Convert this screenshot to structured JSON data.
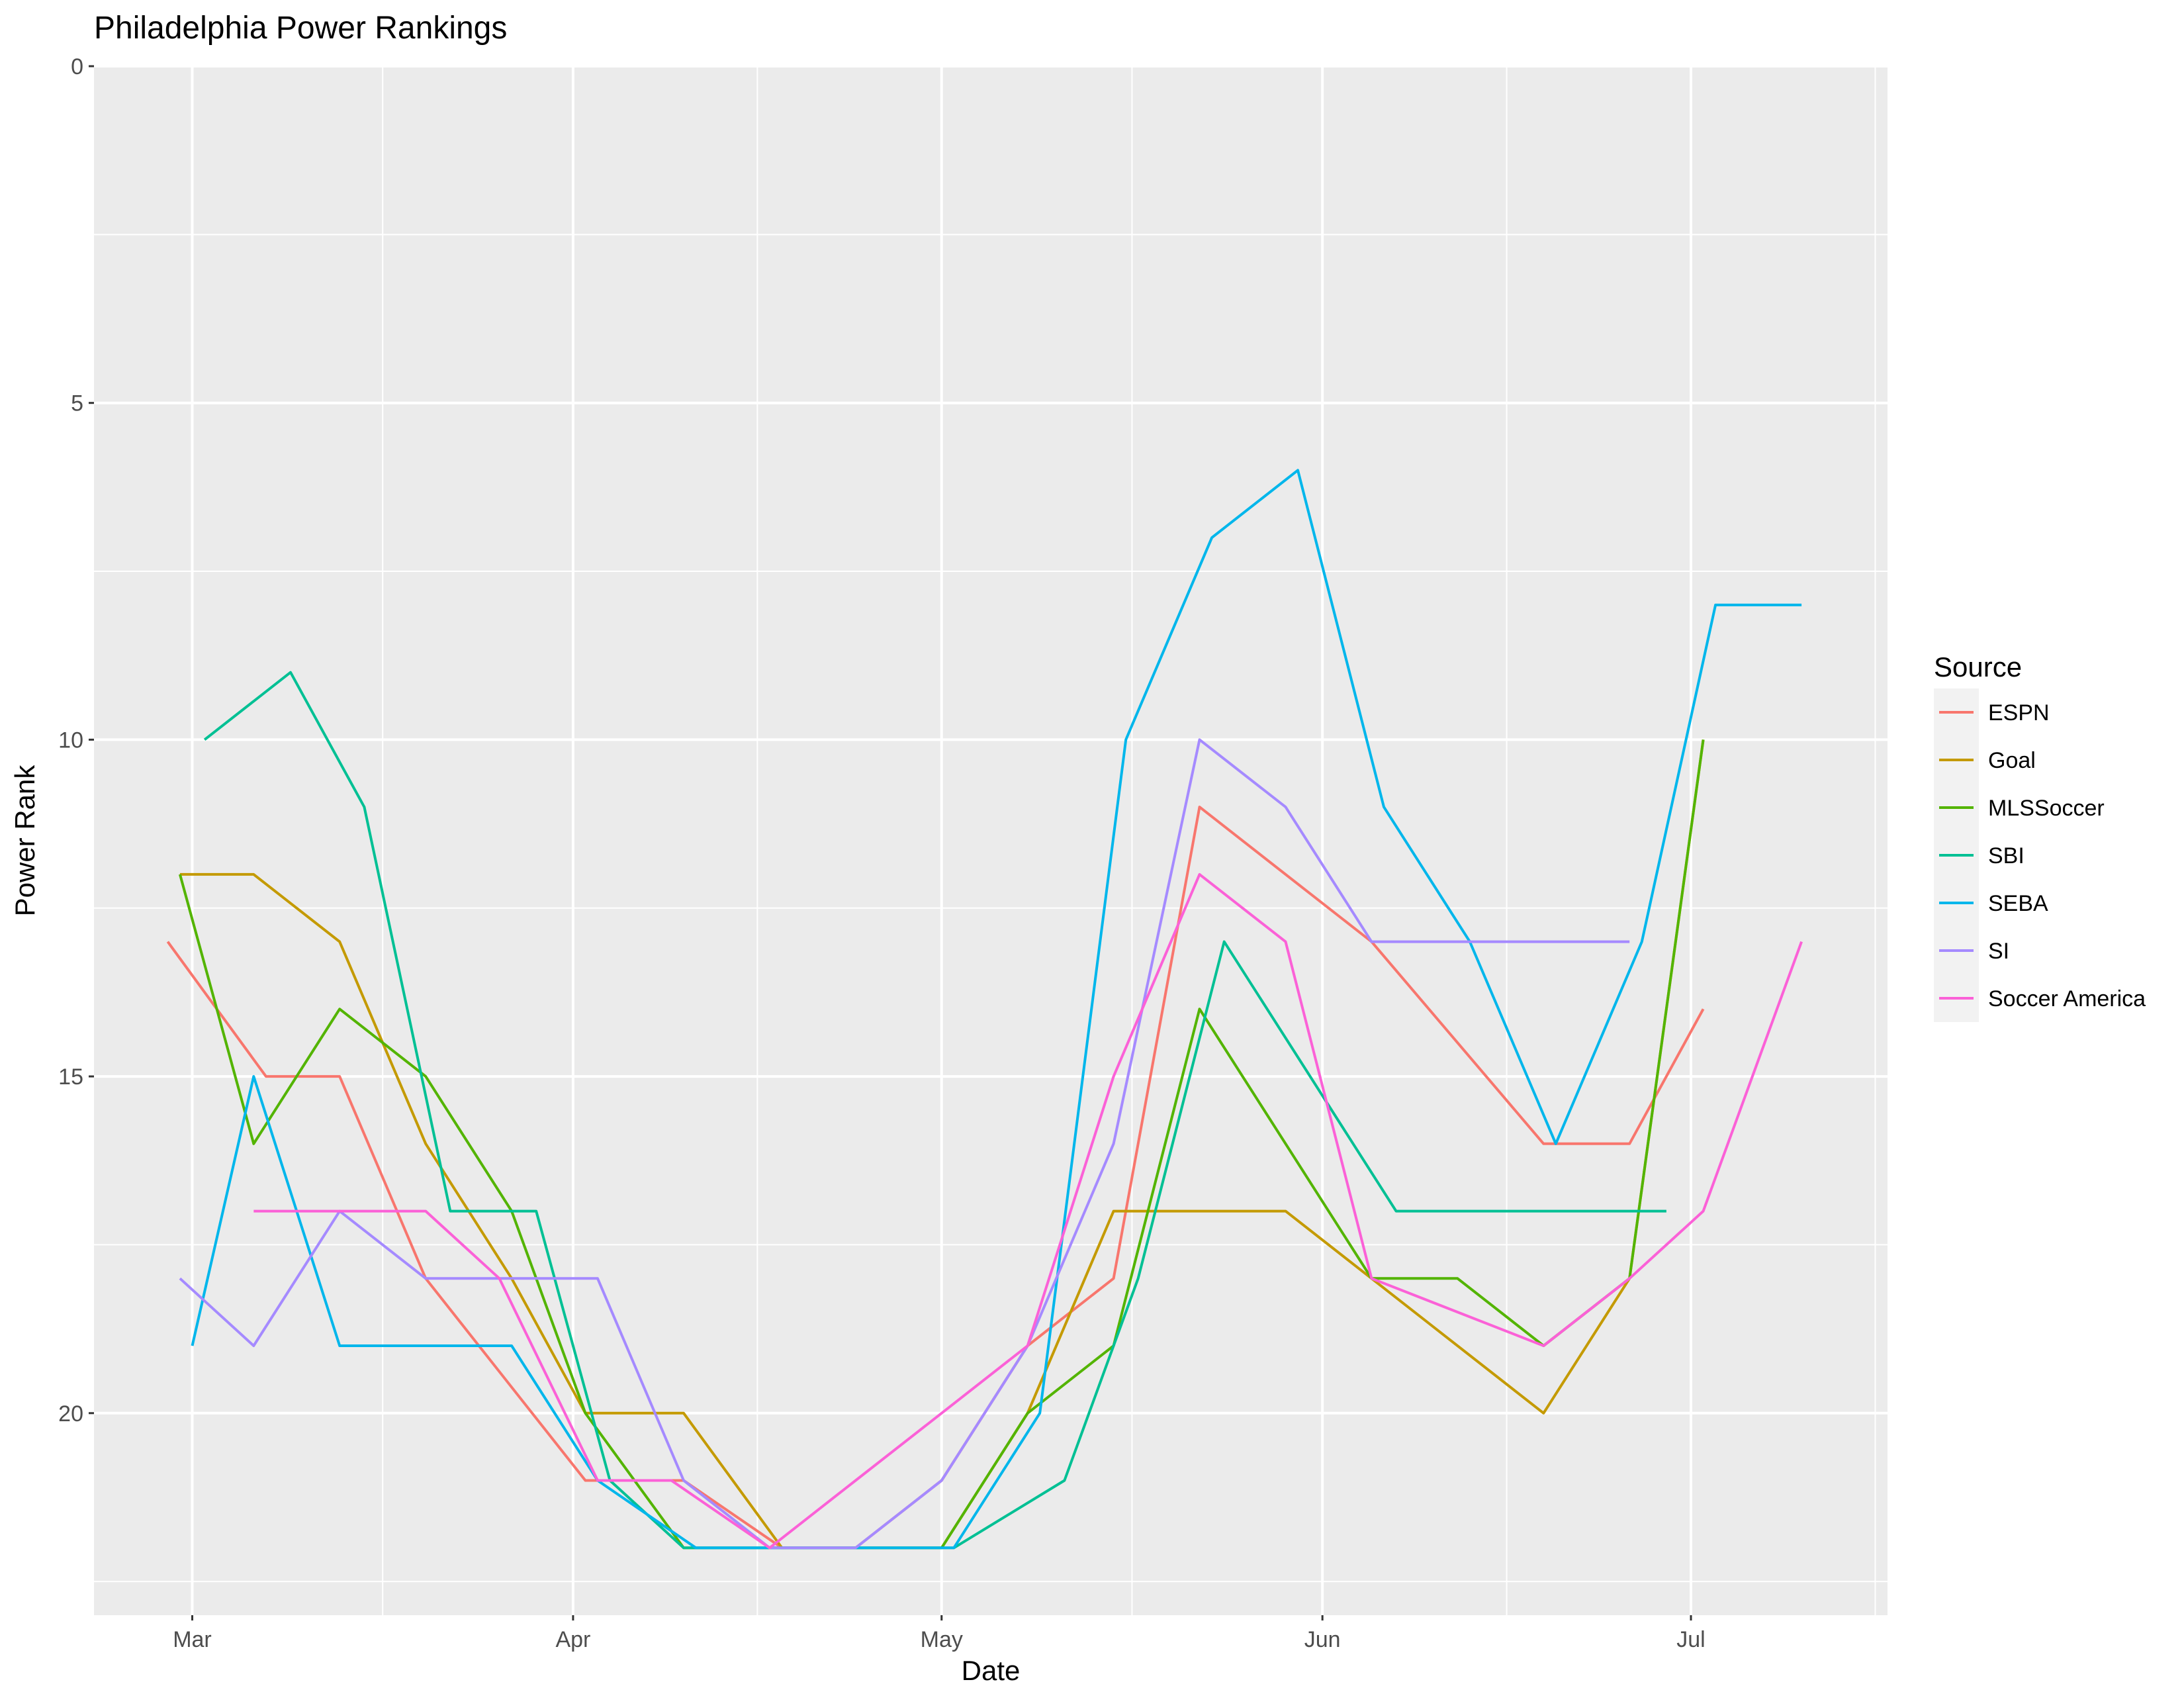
{
  "chart_data": {
    "type": "line",
    "title": "Philadelphia Power Rankings",
    "xlabel": "Date",
    "ylabel": "Power Rank",
    "y_reversed": true,
    "ylim": [
      0,
      23
    ],
    "yticks": [
      0,
      5,
      10,
      15,
      20
    ],
    "xlim": [
      "2016-02-22",
      "2016-07-17"
    ],
    "xticks": [
      {
        "date": "2016-03-01",
        "label": "Mar"
      },
      {
        "date": "2016-04-01",
        "label": "Apr"
      },
      {
        "date": "2016-05-01",
        "label": "May"
      },
      {
        "date": "2016-06-01",
        "label": "Jun"
      },
      {
        "date": "2016-07-01",
        "label": "Jul"
      }
    ],
    "grid": true,
    "legend": {
      "title": "Source",
      "position": "right"
    },
    "series": [
      {
        "name": "ESPN",
        "color": "#F8766D",
        "points": [
          [
            "2016-02-28",
            13
          ],
          [
            "2016-03-07",
            15
          ],
          [
            "2016-03-13",
            15
          ],
          [
            "2016-03-20",
            18
          ],
          [
            "2016-04-02",
            21
          ],
          [
            "2016-04-10",
            21
          ],
          [
            "2016-04-18",
            22
          ],
          [
            "2016-04-24",
            22
          ],
          [
            "2016-05-01",
            21
          ],
          [
            "2016-05-08",
            19
          ],
          [
            "2016-05-15",
            18
          ],
          [
            "2016-05-22",
            11
          ],
          [
            "2016-06-05",
            13
          ],
          [
            "2016-06-19",
            16
          ],
          [
            "2016-06-26",
            16
          ],
          [
            "2016-07-02",
            14
          ]
        ]
      },
      {
        "name": "Goal",
        "color": "#C49A00",
        "points": [
          [
            "2016-02-29",
            12
          ],
          [
            "2016-03-06",
            12
          ],
          [
            "2016-03-13",
            13
          ],
          [
            "2016-03-20",
            16
          ],
          [
            "2016-03-27",
            18
          ],
          [
            "2016-04-02",
            20
          ],
          [
            "2016-04-10",
            20
          ],
          [
            "2016-04-18",
            22
          ],
          [
            "2016-04-24",
            22
          ],
          [
            "2016-05-01",
            22
          ],
          [
            "2016-05-08",
            20
          ],
          [
            "2016-05-15",
            17
          ],
          [
            "2016-05-22",
            17
          ],
          [
            "2016-05-29",
            17
          ],
          [
            "2016-06-05",
            18
          ],
          [
            "2016-06-19",
            20
          ],
          [
            "2016-06-26",
            18
          ],
          [
            "2016-07-02",
            10
          ]
        ]
      },
      {
        "name": "MLSSoccer",
        "color": "#53B400",
        "points": [
          [
            "2016-02-29",
            12
          ],
          [
            "2016-03-06",
            16
          ],
          [
            "2016-03-13",
            14
          ],
          [
            "2016-03-20",
            15
          ],
          [
            "2016-03-27",
            17
          ],
          [
            "2016-04-02",
            20
          ],
          [
            "2016-04-10",
            22
          ],
          [
            "2016-04-18",
            22
          ],
          [
            "2016-04-24",
            22
          ],
          [
            "2016-05-01",
            22
          ],
          [
            "2016-05-08",
            20
          ],
          [
            "2016-05-15",
            19
          ],
          [
            "2016-05-22",
            14
          ],
          [
            "2016-05-29",
            16
          ],
          [
            "2016-06-05",
            18
          ],
          [
            "2016-06-12",
            18
          ],
          [
            "2016-06-19",
            19
          ],
          [
            "2016-06-26",
            18
          ],
          [
            "2016-07-02",
            10
          ]
        ]
      },
      {
        "name": "SBI",
        "color": "#00C094",
        "points": [
          [
            "2016-03-02",
            10
          ],
          [
            "2016-03-09",
            9
          ],
          [
            "2016-03-15",
            11
          ],
          [
            "2016-03-22",
            17
          ],
          [
            "2016-03-29",
            17
          ],
          [
            "2016-04-04",
            21
          ],
          [
            "2016-04-10",
            22
          ],
          [
            "2016-04-18",
            22
          ],
          [
            "2016-04-24",
            22
          ],
          [
            "2016-05-02",
            22
          ],
          [
            "2016-05-11",
            21
          ],
          [
            "2016-05-17",
            18
          ],
          [
            "2016-05-24",
            13
          ],
          [
            "2016-05-31",
            15
          ],
          [
            "2016-06-07",
            17
          ],
          [
            "2016-06-14",
            17
          ],
          [
            "2016-06-21",
            17
          ],
          [
            "2016-06-29",
            17
          ]
        ]
      },
      {
        "name": "SEBA",
        "color": "#00B6EB",
        "points": [
          [
            "2016-03-01",
            19
          ],
          [
            "2016-03-06",
            15
          ],
          [
            "2016-03-13",
            19
          ],
          [
            "2016-03-20",
            19
          ],
          [
            "2016-03-27",
            19
          ],
          [
            "2016-04-03",
            21
          ],
          [
            "2016-04-11",
            22
          ],
          [
            "2016-04-18",
            22
          ],
          [
            "2016-04-25",
            22
          ],
          [
            "2016-05-02",
            22
          ],
          [
            "2016-05-09",
            20
          ],
          [
            "2016-05-16",
            10
          ],
          [
            "2016-05-23",
            7
          ],
          [
            "2016-05-30",
            6
          ],
          [
            "2016-06-06",
            11
          ],
          [
            "2016-06-13",
            13
          ],
          [
            "2016-06-20",
            16
          ],
          [
            "2016-06-27",
            13
          ],
          [
            "2016-07-03",
            8
          ],
          [
            "2016-07-10",
            8
          ]
        ]
      },
      {
        "name": "SI",
        "color": "#A58AFF",
        "points": [
          [
            "2016-02-29",
            18
          ],
          [
            "2016-03-06",
            19
          ],
          [
            "2016-03-13",
            17
          ],
          [
            "2016-03-20",
            18
          ],
          [
            "2016-03-27",
            18
          ],
          [
            "2016-04-03",
            18
          ],
          [
            "2016-04-10",
            21
          ],
          [
            "2016-04-17",
            22
          ],
          [
            "2016-04-24",
            22
          ],
          [
            "2016-05-01",
            21
          ],
          [
            "2016-05-08",
            19
          ],
          [
            "2016-05-15",
            16
          ],
          [
            "2016-05-22",
            10
          ],
          [
            "2016-05-29",
            11
          ],
          [
            "2016-06-05",
            13
          ],
          [
            "2016-06-12",
            13
          ],
          [
            "2016-06-19",
            13
          ],
          [
            "2016-06-26",
            13
          ]
        ]
      },
      {
        "name": "Soccer America",
        "color": "#FB61D7",
        "points": [
          [
            "2016-03-06",
            17
          ],
          [
            "2016-03-13",
            17
          ],
          [
            "2016-03-20",
            17
          ],
          [
            "2016-03-26",
            18
          ],
          [
            "2016-04-03",
            21
          ],
          [
            "2016-04-09",
            21
          ],
          [
            "2016-04-17",
            22
          ],
          [
            "2016-04-24",
            21
          ],
          [
            "2016-05-01",
            20
          ],
          [
            "2016-05-08",
            19
          ],
          [
            "2016-05-15",
            15
          ],
          [
            "2016-05-22",
            12
          ],
          [
            "2016-05-29",
            13
          ],
          [
            "2016-06-05",
            18
          ],
          [
            "2016-06-19",
            19
          ],
          [
            "2016-06-26",
            18
          ],
          [
            "2016-07-02",
            17
          ],
          [
            "2016-07-10",
            13
          ]
        ]
      }
    ]
  }
}
